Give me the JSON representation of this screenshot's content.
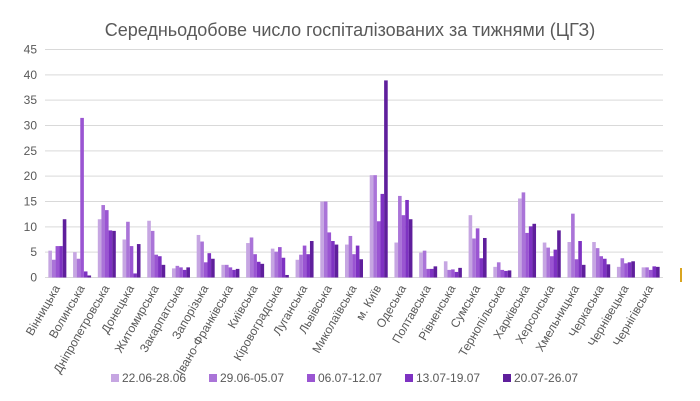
{
  "chart_data": {
    "type": "bar",
    "title": "Середньодобове число госпіталізованих за тижнями (ЦГЗ)",
    "xlabel": "",
    "ylabel": "",
    "ylim": [
      0,
      45
    ],
    "yticks": [
      0,
      5,
      10,
      15,
      20,
      25,
      30,
      35,
      40,
      45
    ],
    "grid": true,
    "legend_position": "bottom",
    "categories": [
      "Вінницька",
      "Волинська",
      "Дніпропетровська",
      "Донецька",
      "Житомирська",
      "Закарпатська",
      "Запорізька",
      "Івано-Франківська",
      "Київська",
      "Кіровоградська",
      "Луганська",
      "Львівська",
      "Миколаївська",
      "м. Київ",
      "Одеська",
      "Полтавська",
      "Рівненська",
      "Сумська",
      "Тернопільська",
      "Харківська",
      "Херсонська",
      "Хмельницька",
      "Черкаська",
      "Чернівецька",
      "Чернігівська"
    ],
    "series": [
      {
        "name": "22.06-28.06",
        "color": "#c6a6e2",
        "values": [
          5.3,
          5.0,
          11.5,
          7.5,
          11.2,
          1.8,
          8.4,
          2.5,
          6.8,
          5.7,
          3.5,
          15.0,
          6.5,
          20.2,
          6.9,
          4.9,
          3.2,
          12.3,
          2.1,
          15.6,
          6.9,
          7.0,
          7.0,
          2.1,
          2.0
        ]
      },
      {
        "name": "29.06-05.07",
        "color": "#aa74d8",
        "values": [
          3.5,
          3.7,
          14.3,
          11.0,
          9.2,
          2.3,
          7.1,
          2.5,
          7.9,
          5.1,
          4.5,
          15.0,
          8.2,
          20.2,
          16.1,
          5.3,
          1.5,
          7.7,
          3.0,
          16.8,
          5.9,
          12.6,
          5.8,
          3.8,
          2.0
        ]
      },
      {
        "name": "06.07-12.07",
        "color": "#9a55d2",
        "values": [
          6.2,
          31.5,
          13.3,
          6.2,
          4.5,
          2.0,
          3.0,
          2.0,
          4.6,
          6.0,
          6.3,
          8.9,
          4.6,
          11.1,
          12.3,
          1.7,
          1.6,
          9.7,
          1.5,
          8.8,
          4.2,
          3.6,
          4.2,
          2.8,
          1.5
        ]
      },
      {
        "name": "13.07-19.07",
        "color": "#7e32c2",
        "values": [
          6.2,
          1.2,
          9.3,
          0.8,
          4.2,
          1.5,
          4.8,
          1.5,
          3.1,
          3.9,
          4.6,
          7.2,
          6.3,
          16.5,
          15.3,
          1.7,
          1.1,
          3.8,
          1.3,
          10.1,
          5.5,
          7.2,
          3.7,
          3.0,
          2.2
        ]
      },
      {
        "name": "20.07-26.07",
        "color": "#5f1f9c",
        "values": [
          11.5,
          0.4,
          9.2,
          6.6,
          2.5,
          2.0,
          3.7,
          1.7,
          2.7,
          0.5,
          7.2,
          6.5,
          3.6,
          38.9,
          11.5,
          2.2,
          1.9,
          7.8,
          1.4,
          10.6,
          9.3,
          2.5,
          2.6,
          3.2,
          2.1
        ]
      }
    ]
  }
}
